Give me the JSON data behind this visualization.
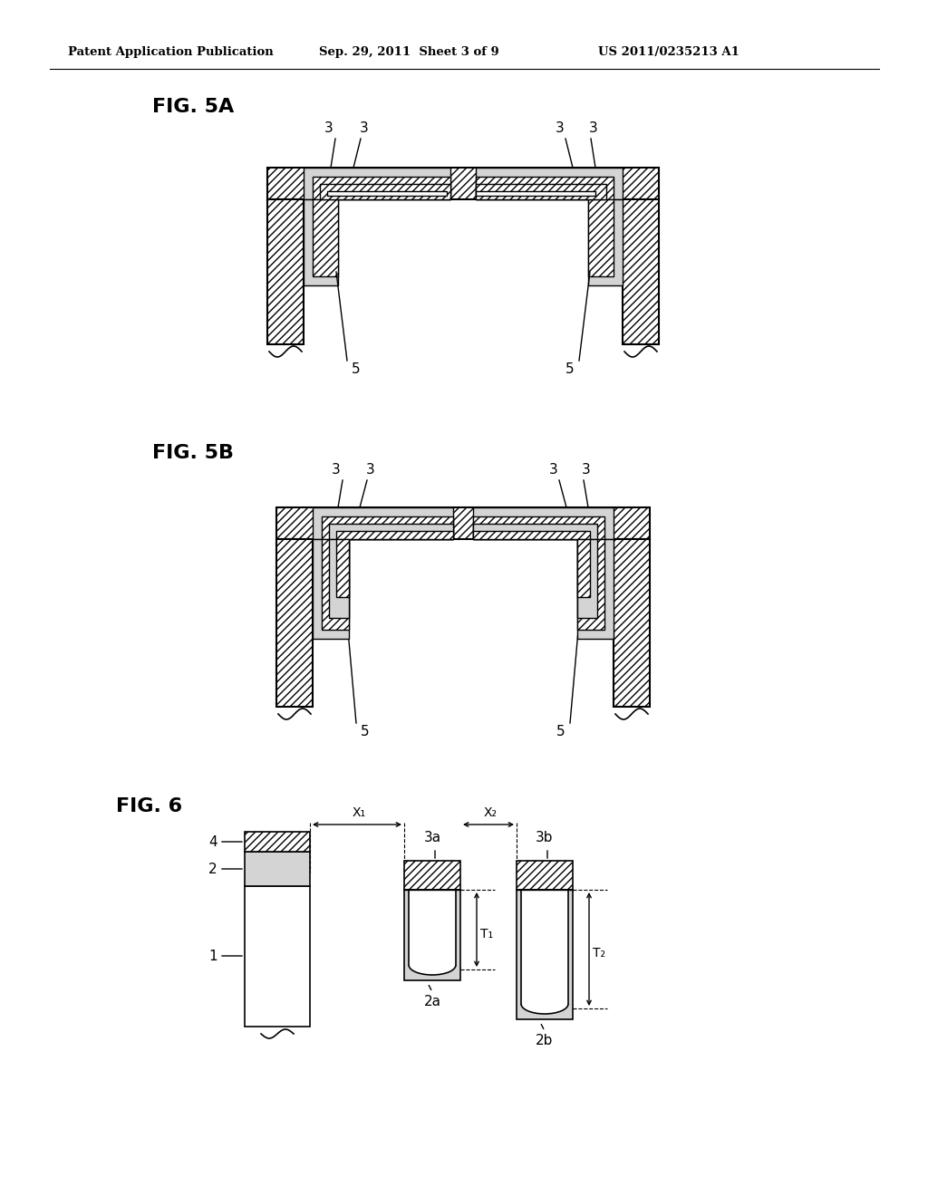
{
  "header_left": "Patent Application Publication",
  "header_mid": "Sep. 29, 2011  Sheet 3 of 9",
  "header_right": "US 2011/0235213 A1",
  "fig5a_label": "FIG. 5A",
  "fig5b_label": "FIG. 5B",
  "fig6_label": "FIG. 6",
  "background": "#ffffff",
  "hatch_fc": "white",
  "dot_fc": "#d4d4d4",
  "line_color": "#000000",
  "hatch_pattern": "////",
  "lw_main": 1.5,
  "lw_inner": 1.0
}
